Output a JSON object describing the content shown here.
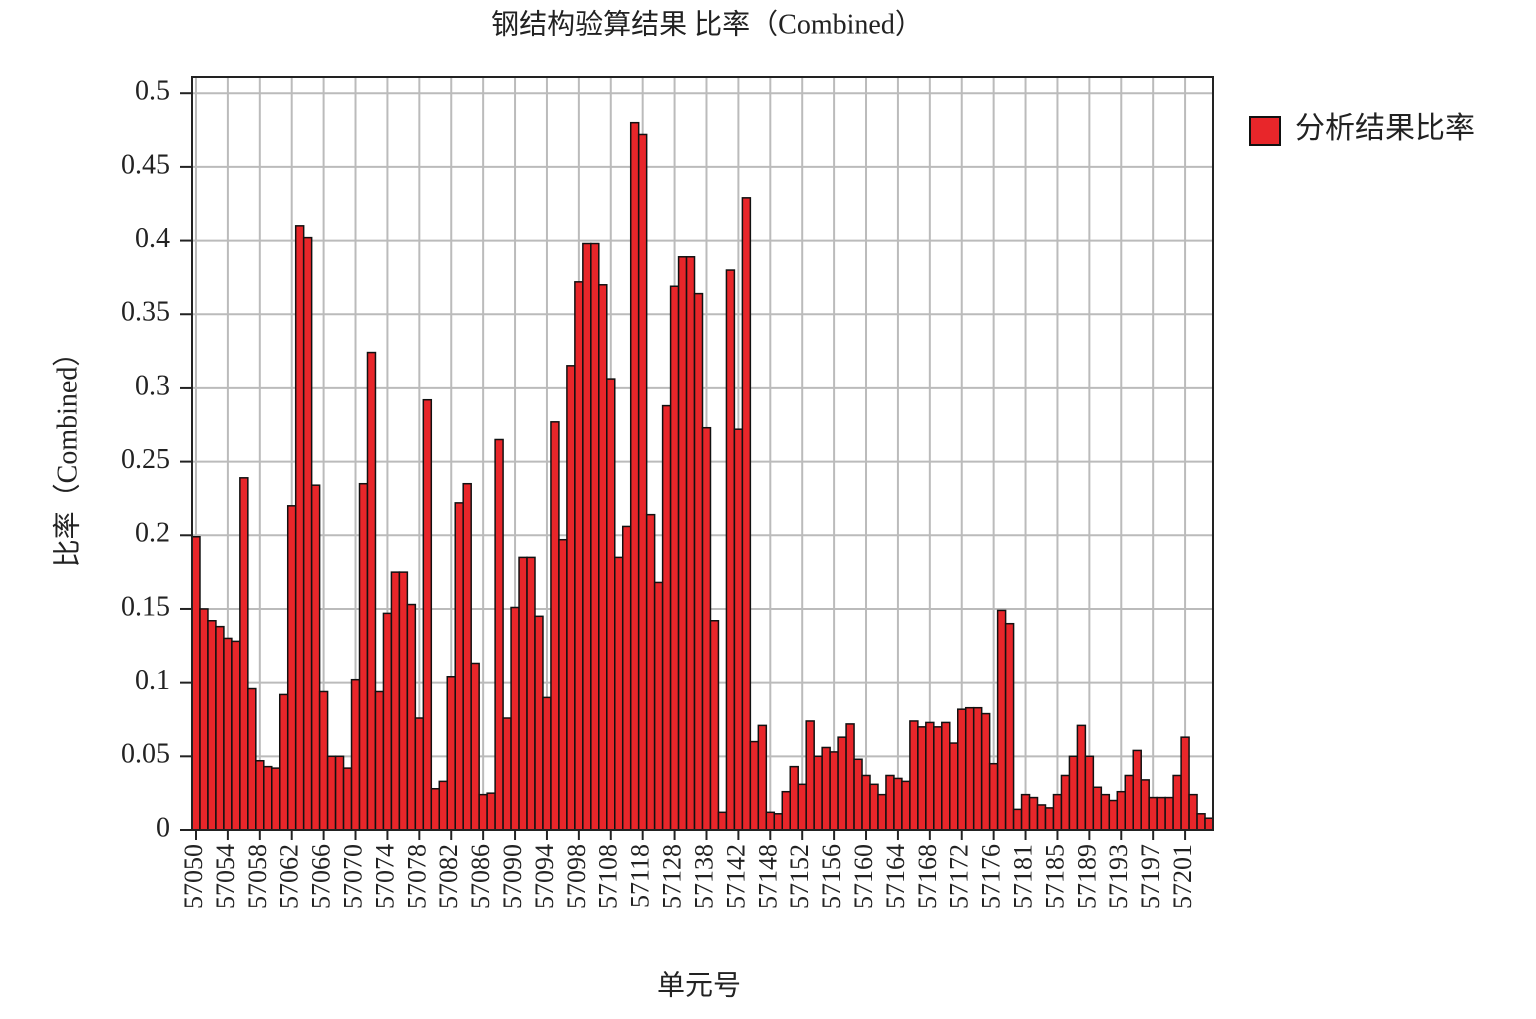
{
  "chart_data": {
    "type": "bar",
    "title": "钢结构验算结果 比率（Combined）",
    "x_label": "单元号",
    "y_label": "比率（Combined）",
    "categories": [
      "57050",
      null,
      null,
      null,
      "57054",
      null,
      null,
      null,
      "57058",
      null,
      null,
      null,
      "57062",
      null,
      null,
      null,
      "57066",
      null,
      null,
      null,
      "57070",
      null,
      null,
      null,
      "57074",
      null,
      null,
      null,
      "57078",
      null,
      null,
      null,
      "57082",
      null,
      null,
      null,
      "57086",
      null,
      null,
      null,
      "57090",
      null,
      null,
      null,
      "57094",
      null,
      null,
      null,
      "57098",
      null,
      null,
      null,
      "57108",
      null,
      null,
      null,
      "57118",
      null,
      null,
      null,
      "57128",
      null,
      null,
      null,
      "57138",
      null,
      null,
      null,
      "57142",
      null,
      null,
      null,
      "57148",
      null,
      null,
      null,
      "57152",
      null,
      null,
      null,
      "57156",
      null,
      null,
      null,
      "57160",
      null,
      null,
      null,
      "57164",
      null,
      null,
      null,
      "57168",
      null,
      null,
      null,
      "57172",
      null,
      null,
      null,
      "57176",
      null,
      null,
      null,
      "57181",
      null,
      null,
      null,
      "57185",
      null,
      null,
      null,
      "57189",
      null,
      null,
      null,
      "57193",
      null,
      null,
      null,
      "57197",
      null,
      null,
      null,
      "57201",
      null,
      null,
      null
    ],
    "series": [
      {
        "name": "分析结果比率",
        "color": "#e8262a",
        "values": [
          0.199,
          0.15,
          0.142,
          0.138,
          0.13,
          0.128,
          0.239,
          0.096,
          0.047,
          0.043,
          0.042,
          0.092,
          0.22,
          0.41,
          0.402,
          0.234,
          0.094,
          0.05,
          0.05,
          0.042,
          0.102,
          0.235,
          0.324,
          0.094,
          0.147,
          0.175,
          0.175,
          0.153,
          0.076,
          0.292,
          0.028,
          0.033,
          0.104,
          0.222,
          0.235,
          0.113,
          0.024,
          0.025,
          0.265,
          0.076,
          0.151,
          0.185,
          0.185,
          0.145,
          0.09,
          0.277,
          0.197,
          0.315,
          0.372,
          0.398,
          0.398,
          0.37,
          0.306,
          0.185,
          0.206,
          0.48,
          0.472,
          0.214,
          0.168,
          0.288,
          0.369,
          0.389,
          0.389,
          0.364,
          0.273,
          0.142,
          0.012,
          0.38,
          0.272,
          0.429,
          0.06,
          0.071,
          0.012,
          0.011,
          0.026,
          0.043,
          0.031,
          0.074,
          0.05,
          0.056,
          0.053,
          0.063,
          0.072,
          0.048,
          0.037,
          0.031,
          0.024,
          0.037,
          0.035,
          0.033,
          0.074,
          0.07,
          0.073,
          0.07,
          0.073,
          0.059,
          0.082,
          0.083,
          0.083,
          0.079,
          0.045,
          0.149,
          0.14,
          0.014,
          0.024,
          0.022,
          0.017,
          0.015,
          0.024,
          0.037,
          0.05,
          0.071,
          0.05,
          0.029,
          0.024,
          0.02,
          0.026,
          0.037,
          0.054,
          0.034,
          0.022,
          0.022,
          0.022,
          0.037,
          0.063,
          0.024,
          0.011,
          0.008
        ]
      }
    ],
    "ylim": [
      0,
      0.511
    ],
    "yticks": [
      0,
      0.05,
      0.1,
      0.15,
      0.2,
      0.25,
      0.3,
      0.35,
      0.4,
      0.45,
      0.5
    ],
    "grid": true,
    "legend": "right"
  }
}
